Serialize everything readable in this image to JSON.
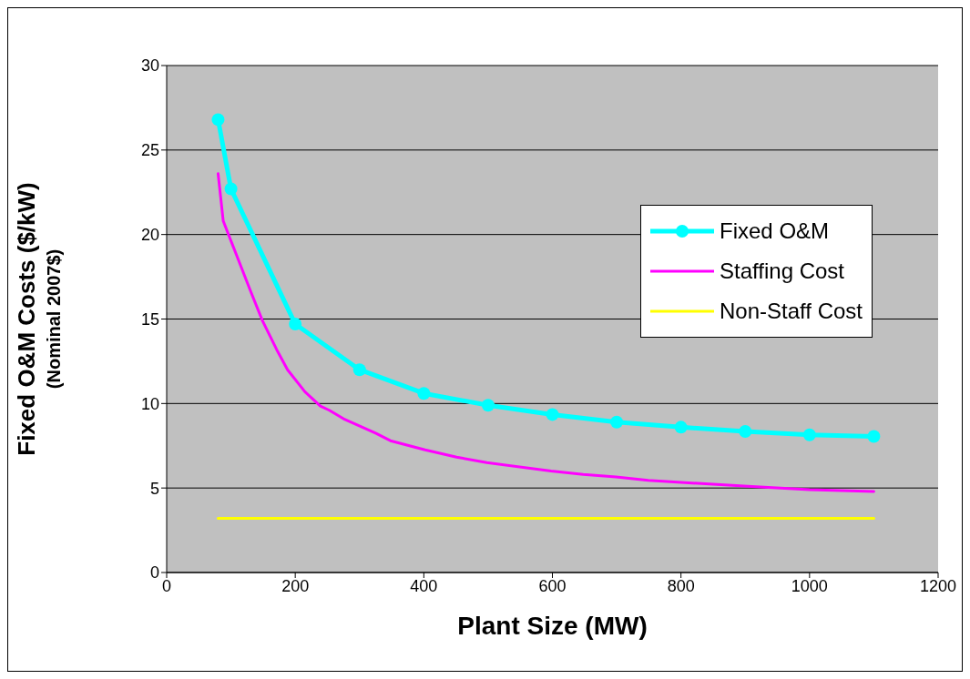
{
  "chart_data": {
    "type": "line",
    "xlabel": "Plant Size (MW)",
    "ylabel": "Fixed O&M Costs ($/kW)\n(Nominal 2007$)",
    "xlim": [
      0,
      1200
    ],
    "xticks": [
      0,
      200,
      400,
      600,
      800,
      1000,
      1200
    ],
    "ylim": [
      0,
      30
    ],
    "yticks": [
      0,
      5,
      10,
      15,
      20,
      25,
      30
    ],
    "grid": "y",
    "legend": "right",
    "series": [
      {
        "name": "Fixed O&M",
        "color": "#00ffff",
        "marker": "circle",
        "x": [
          80,
          100,
          200,
          300,
          400,
          500,
          600,
          700,
          800,
          900,
          1000,
          1100
        ],
        "values": [
          26.8,
          22.7,
          14.7,
          12.0,
          10.6,
          9.9,
          9.35,
          8.9,
          8.6,
          8.35,
          8.15,
          8.05
        ]
      },
      {
        "name": "Staffing Cost",
        "color": "#ff00ff",
        "marker": "none",
        "x": [
          80,
          88,
          131,
          149,
          171,
          188,
          215,
          239,
          253,
          275,
          325,
          348,
          402,
          451,
          498,
          598,
          648,
          699,
          749,
          904,
          1000,
          1100
        ],
        "values": [
          23.6,
          20.8,
          16.6,
          14.9,
          13.2,
          12.0,
          10.7,
          9.85,
          9.6,
          9.1,
          8.25,
          7.8,
          7.26,
          6.83,
          6.5,
          6.0,
          5.8,
          5.65,
          5.45,
          5.1,
          4.9,
          4.8
        ]
      },
      {
        "name": "Non-Staff Cost",
        "color": "#ffff00",
        "marker": "none",
        "x": [
          80,
          1100
        ],
        "values": [
          3.2,
          3.2
        ]
      }
    ]
  }
}
